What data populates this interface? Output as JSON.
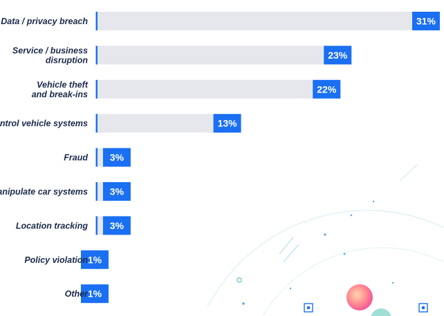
{
  "chart_data": {
    "type": "bar",
    "orientation": "horizontal",
    "categories": [
      "Data / privacy breach",
      "Service / business disruption",
      "Vehicle theft and break-ins",
      "Control vehicle systems",
      "Fraud",
      "Manipulate car systems",
      "Location tracking",
      "Policy violation",
      "Other"
    ],
    "category_lines": [
      [
        "Data / privacy breach"
      ],
      [
        "Service / business",
        "disruption"
      ],
      [
        "Vehicle theft",
        "and break-ins"
      ],
      [
        "Control vehicle systems"
      ],
      [
        "Fraud"
      ],
      [
        "Manipulate car systems"
      ],
      [
        "Location tracking"
      ],
      [
        "Policy violation"
      ],
      [
        "Other"
      ]
    ],
    "values": [
      31,
      23,
      22,
      13,
      3,
      3,
      3,
      1,
      1
    ],
    "value_labels": [
      "31%",
      "23%",
      "22%",
      "13%",
      "3%",
      "3%",
      "3%",
      "1%",
      "1%"
    ],
    "unit": "%",
    "xlim": [
      0,
      31
    ],
    "grid": false,
    "legend": "none",
    "colors": {
      "bar": "#1a6ff2",
      "track": "#e5e7ec",
      "axis": "#1a6ff2",
      "label": "#1b2a4a",
      "decoration": "#9fd4e6"
    }
  }
}
